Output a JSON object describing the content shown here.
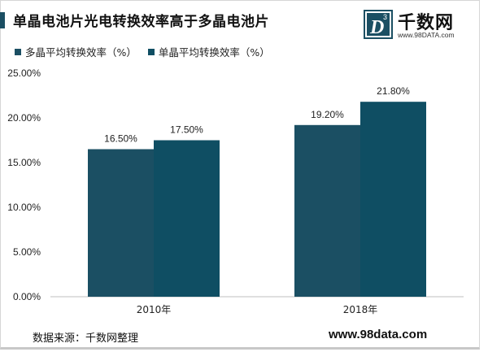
{
  "title": "单晶电池片光电转换效率高于多晶电池片",
  "logo": {
    "name": "千数网",
    "url": "www.98DATA.com",
    "mark": "D",
    "mark_sup": "3"
  },
  "source": "数据来源：千数网整理",
  "site": "www.98data.com",
  "colors": {
    "multi": "#1b4f63",
    "mono": "#0f4e63",
    "title_accent": "#1b4f63"
  },
  "chart_data": {
    "type": "bar",
    "categories": [
      "2010年",
      "2018年"
    ],
    "series": [
      {
        "name": "多晶平均转换效率（%）",
        "values": [
          0.165,
          0.192
        ],
        "labels": [
          "16.50%",
          "19.20%"
        ]
      },
      {
        "name": "单晶平均转换效率（%）",
        "values": [
          0.175,
          0.218
        ],
        "labels": [
          "17.50%",
          "21.80%"
        ]
      }
    ],
    "yticks": [
      "0.00%",
      "5.00%",
      "10.00%",
      "15.00%",
      "20.00%",
      "25.00%"
    ],
    "ylim": [
      0,
      0.25
    ],
    "grid": false,
    "legend": "top-left"
  }
}
